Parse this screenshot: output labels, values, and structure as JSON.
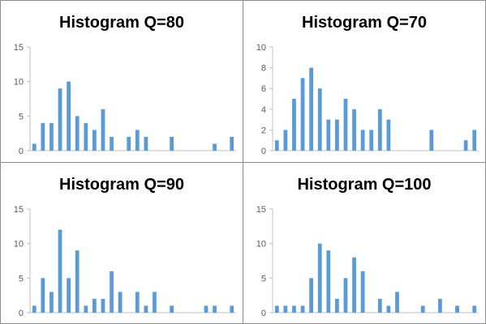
{
  "colors": {
    "bar": "#5b9bd5",
    "axis": "#bfbfbf",
    "border": "#8c8c8c",
    "tick_text": "#595959"
  },
  "chart_data": [
    {
      "type": "bar",
      "title": "Histogram Q=80",
      "ylim": [
        0,
        15
      ],
      "yticks": [
        0,
        5,
        10,
        15
      ],
      "grid": false,
      "values": [
        1,
        4,
        4,
        9,
        10,
        5,
        4,
        3,
        6,
        2,
        0,
        2,
        3,
        2,
        0,
        0,
        2,
        0,
        0,
        0,
        0,
        1,
        0,
        2
      ]
    },
    {
      "type": "bar",
      "title": "Histogram Q=70",
      "ylim": [
        0,
        10
      ],
      "yticks": [
        0,
        2,
        4,
        6,
        8,
        10
      ],
      "grid": false,
      "values": [
        1,
        2,
        5,
        7,
        8,
        6,
        3,
        3,
        5,
        4,
        2,
        2,
        4,
        3,
        0,
        0,
        0,
        0,
        2,
        0,
        0,
        0,
        1,
        2
      ]
    },
    {
      "type": "bar",
      "title": "Histogram Q=90",
      "ylim": [
        0,
        15
      ],
      "yticks": [
        0,
        5,
        10,
        15
      ],
      "grid": false,
      "values": [
        1,
        5,
        3,
        12,
        5,
        9,
        1,
        2,
        2,
        6,
        3,
        0,
        3,
        1,
        3,
        0,
        1,
        0,
        0,
        0,
        1,
        1,
        0,
        1
      ]
    },
    {
      "type": "bar",
      "title": "Histogram Q=100",
      "ylim": [
        0,
        15
      ],
      "yticks": [
        0,
        5,
        10,
        15
      ],
      "grid": false,
      "values": [
        1,
        1,
        1,
        1,
        5,
        10,
        9,
        2,
        5,
        8,
        6,
        0,
        2,
        1,
        3,
        0,
        0,
        1,
        0,
        2,
        0,
        1,
        0,
        1
      ]
    }
  ]
}
